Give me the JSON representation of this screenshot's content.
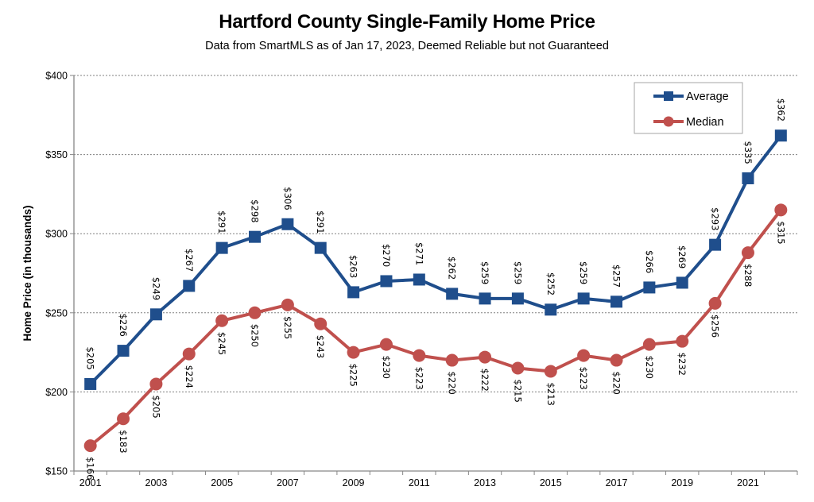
{
  "chart_data": {
    "type": "line",
    "title": "Hartford County Single-Family Home Price",
    "subtitle": "Data from SmartMLS as of Jan 17, 2023, Deemed Reliable but not Guaranteed",
    "xlabel": "",
    "ylabel": "Home Price (in thousands)",
    "x": [
      2001,
      2002,
      2003,
      2004,
      2005,
      2006,
      2007,
      2008,
      2009,
      2010,
      2011,
      2012,
      2013,
      2014,
      2015,
      2016,
      2017,
      2018,
      2019,
      2020,
      2021,
      2022
    ],
    "x_tick_labels": [
      "2001",
      "2003",
      "2005",
      "2007",
      "2009",
      "2011",
      "2013",
      "2015",
      "2017",
      "2019",
      "2021"
    ],
    "ylim": [
      150,
      400
    ],
    "y_ticks": [
      150,
      200,
      250,
      300,
      350,
      400
    ],
    "y_tick_labels": [
      "$150",
      "$200",
      "$250",
      "$300",
      "$350",
      "$400"
    ],
    "grid": "horizontal-dotted",
    "legend_position": "top-right",
    "series": [
      {
        "name": "Average",
        "color": "#1f4e8c",
        "marker": "square",
        "label_position": "above",
        "values": [
          205,
          226,
          249,
          267,
          291,
          298,
          306,
          291,
          263,
          270,
          271,
          262,
          259,
          259,
          252,
          259,
          257,
          266,
          269,
          293,
          335,
          362
        ],
        "labels": [
          "$205",
          "$226",
          "$249",
          "$267",
          "$291",
          "$298",
          "$306",
          "$291",
          "$263",
          "$270",
          "$271",
          "$262",
          "$259",
          "$259",
          "$252",
          "$259",
          "$257",
          "$266",
          "$269",
          "$293",
          "$335",
          "$362"
        ]
      },
      {
        "name": "Median",
        "color": "#c0504d",
        "marker": "circle",
        "label_position": "below",
        "values": [
          166,
          183,
          205,
          224,
          245,
          250,
          255,
          243,
          225,
          230,
          223,
          220,
          222,
          215,
          213,
          223,
          220,
          230,
          232,
          256,
          288,
          315
        ],
        "labels": [
          "$166",
          "$183",
          "$205",
          "$224",
          "$245",
          "$250",
          "$255",
          "$243",
          "$225",
          "$230",
          "$223",
          "$220",
          "$222",
          "$215",
          "$213",
          "$223",
          "$220",
          "$230",
          "$232",
          "$256",
          "$288",
          "$315"
        ]
      }
    ]
  }
}
